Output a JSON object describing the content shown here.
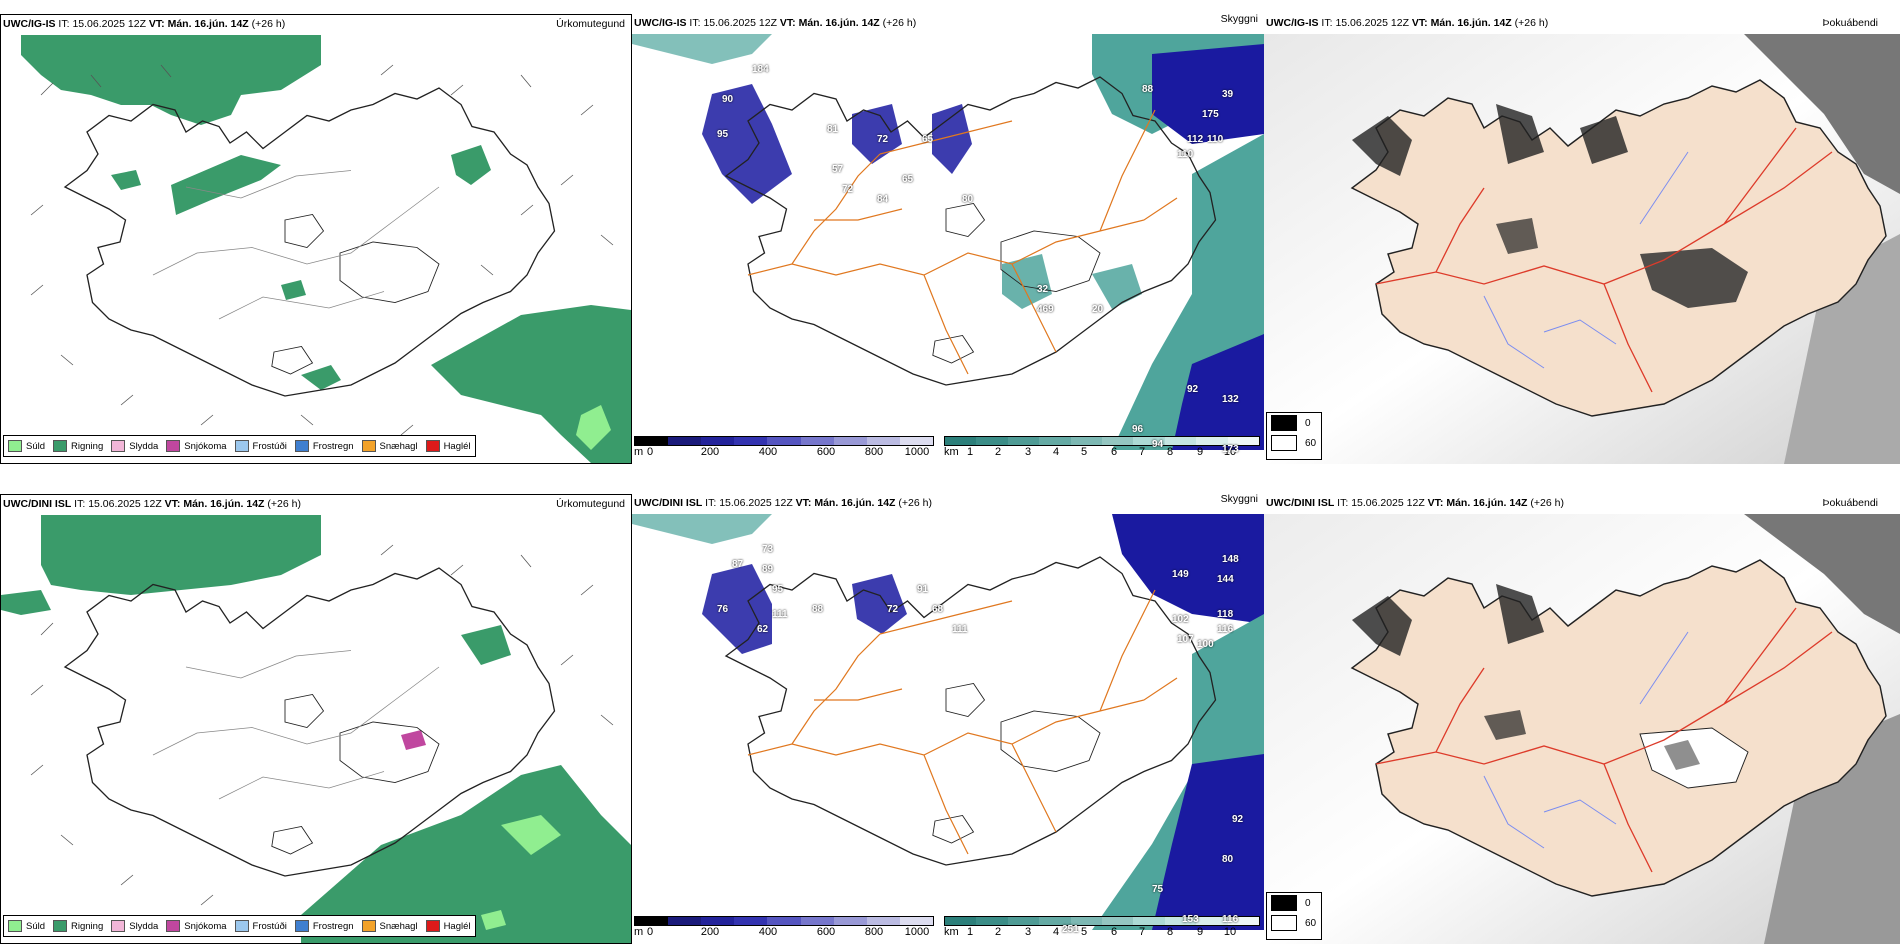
{
  "rows": [
    {
      "model": "UWC/IG-IS",
      "it_label": "IT:",
      "it_value": "15.06.2025 12Z",
      "vt_label": "VT:",
      "vt_value": "Mán. 16.jún. 14Z",
      "lead": "(+26 h)",
      "left_tag": "Úrkomutegund",
      "mid_tag": "Skyggni",
      "right_tag": "Þokuábendi",
      "vis_labels": [
        "184",
        "90",
        "95",
        "81",
        "72",
        "65",
        "57",
        "72",
        "84",
        "65",
        "80",
        "88",
        "39",
        "175",
        "112",
        "110",
        "110",
        "32",
        "469",
        "20",
        "92",
        "132",
        "96",
        "94",
        "173"
      ]
    },
    {
      "model": "UWC/DINI ISL",
      "it_label": "IT:",
      "it_value": "15.06.2025 12Z",
      "vt_label": "VT:",
      "vt_value": "Mán. 16.jún. 14Z",
      "lead": "(+26 h)",
      "left_tag": "Úrkomutegund",
      "mid_tag": "Skyggni",
      "right_tag": "Þokuábendi",
      "vis_labels": [
        "73",
        "87",
        "89",
        "95",
        "76",
        "111",
        "62",
        "88",
        "72",
        "91",
        "68",
        "111",
        "149",
        "148",
        "144",
        "102",
        "107",
        "116",
        "118",
        "100",
        "92",
        "80",
        "75",
        "153",
        "116",
        "251"
      ]
    }
  ],
  "precip_legend": [
    {
      "label": "Súld",
      "color": "#90ee90"
    },
    {
      "label": "Rigning",
      "color": "#3a9b6a"
    },
    {
      "label": "Slydda",
      "color": "#f2b6d8"
    },
    {
      "label": "Snjókoma",
      "color": "#c0479f"
    },
    {
      "label": "Frostúði",
      "color": "#9cc8ee"
    },
    {
      "label": "Frostregn",
      "color": "#3f7fd0"
    },
    {
      "label": "Snæhagl",
      "color": "#f2a22a"
    },
    {
      "label": "Haglél",
      "color": "#dd1a1a"
    }
  ],
  "elev_scale": {
    "unit": "m",
    "ticks": [
      "0",
      "200",
      "400",
      "600",
      "800",
      "1000"
    ],
    "colors": [
      "#000000",
      "#1a1a7a",
      "#22229a",
      "#3333b0",
      "#5555c0",
      "#7777cc",
      "#9999d6",
      "#bbbbe2",
      "#ddddf0"
    ]
  },
  "km_scale": {
    "unit": "km",
    "ticks": [
      "1",
      "2",
      "3",
      "4",
      "5",
      "6",
      "7",
      "8",
      "9",
      "10"
    ],
    "colors": [
      "#2c7f7a",
      "#3b8d87",
      "#4f9b95",
      "#65aaa4",
      "#7db8b3",
      "#95c6c1",
      "#addad5",
      "#c4e5e1",
      "#daefec",
      "#eef8f6"
    ]
  },
  "cloud_legend": {
    "min": "0",
    "max": "60"
  },
  "colors": {
    "rain": "#3a9b6a",
    "drizzle": "#90ee90",
    "coast": "#000000",
    "road": "#e07820",
    "sea_low_vis": "#1a1aa0",
    "sea_mid": "#4fa59c",
    "fog_land": "#f5e0cc",
    "road_red": "#dd3b2a",
    "river": "#7a8cf0"
  }
}
